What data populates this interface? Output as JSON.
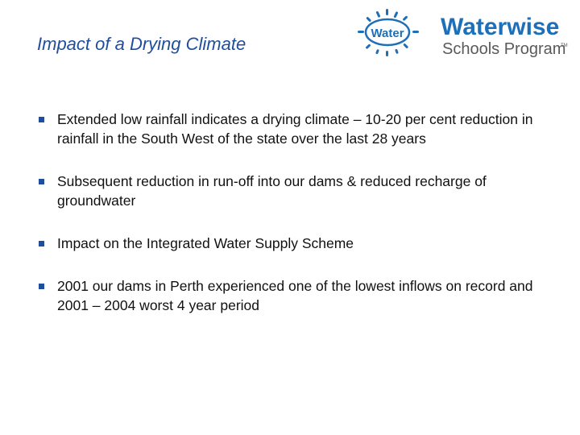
{
  "slide": {
    "title": "Impact of a Drying Climate"
  },
  "logo": {
    "badge_text": "Water",
    "brand_line1": "Waterwise",
    "brand_line2": "Schools Program",
    "trademark": "TM",
    "colors": {
      "blue": "#1c6fb8",
      "gray": "#5a5a5a"
    }
  },
  "bullets": [
    {
      "text": "Extended low rainfall indicates a drying climate – 10-20 per cent reduction in rainfall in the South West of the state over the last 28 years"
    },
    {
      "text": "Subsequent reduction in run-off into our dams & reduced recharge of groundwater"
    },
    {
      "text": "Impact on the Integrated Water Supply Scheme"
    },
    {
      "text": "2001 our dams in Perth experienced one of the lowest inflows on record and 2001 – 2004 worst 4 year period"
    }
  ],
  "colors": {
    "title": "#1f4e9c",
    "bullet_marker": "#1f4e9c",
    "body_text": "#111111"
  }
}
